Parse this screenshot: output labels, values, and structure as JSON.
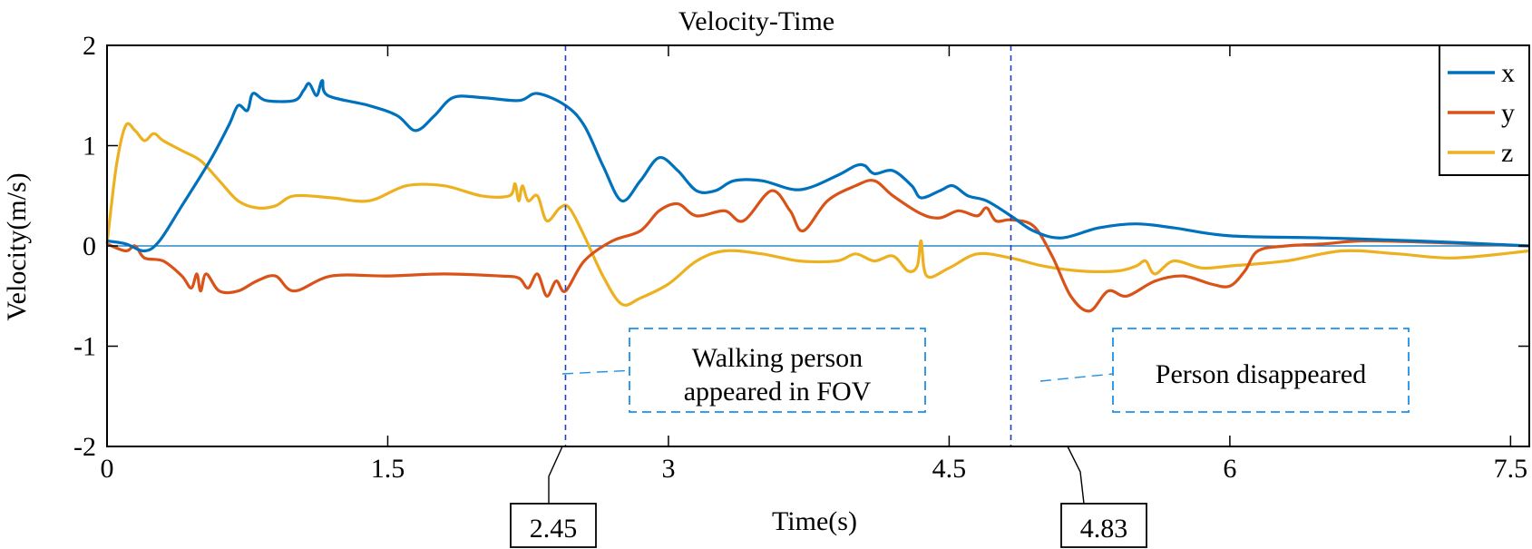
{
  "chart_data": {
    "type": "line",
    "title": "Velocity-Time",
    "xlabel": "Time(s)",
    "ylabel": "Velocity(m/s)",
    "xlim": [
      0,
      7.6
    ],
    "ylim": [
      -2,
      2
    ],
    "xticks": [
      0,
      1.5,
      3,
      4.5,
      6,
      7.5
    ],
    "xtick_labels": [
      "0",
      "1.5",
      "3",
      "4.5",
      "6",
      "7.5"
    ],
    "yticks": [
      -2,
      -1,
      0,
      1,
      2
    ],
    "ytick_labels": [
      "-2",
      "-1",
      "0",
      "1",
      "2"
    ],
    "grid": false,
    "legend_position": "top-right",
    "zero_line": true,
    "colors": {
      "x": "#0072BD",
      "y": "#D95319",
      "z": "#EDB120",
      "annotation": "#1E90E6",
      "marker": "#1F3FBF"
    },
    "series": [
      {
        "name": "x",
        "color": "#0072BD",
        "points": [
          [
            0,
            0.05
          ],
          [
            0.1,
            0.02
          ],
          [
            0.2,
            -0.05
          ],
          [
            0.28,
            0.05
          ],
          [
            0.4,
            0.4
          ],
          [
            0.55,
            0.85
          ],
          [
            0.65,
            1.2
          ],
          [
            0.7,
            1.4
          ],
          [
            0.75,
            1.35
          ],
          [
            0.78,
            1.52
          ],
          [
            0.85,
            1.45
          ],
          [
            1.0,
            1.45
          ],
          [
            1.05,
            1.55
          ],
          [
            1.08,
            1.62
          ],
          [
            1.12,
            1.5
          ],
          [
            1.15,
            1.65
          ],
          [
            1.18,
            1.5
          ],
          [
            1.4,
            1.4
          ],
          [
            1.55,
            1.3
          ],
          [
            1.65,
            1.15
          ],
          [
            1.75,
            1.3
          ],
          [
            1.85,
            1.48
          ],
          [
            2.0,
            1.48
          ],
          [
            2.2,
            1.45
          ],
          [
            2.3,
            1.52
          ],
          [
            2.45,
            1.4
          ],
          [
            2.55,
            1.2
          ],
          [
            2.65,
            0.8
          ],
          [
            2.75,
            0.45
          ],
          [
            2.85,
            0.65
          ],
          [
            2.95,
            0.88
          ],
          [
            3.05,
            0.75
          ],
          [
            3.15,
            0.55
          ],
          [
            3.25,
            0.55
          ],
          [
            3.35,
            0.65
          ],
          [
            3.5,
            0.65
          ],
          [
            3.7,
            0.56
          ],
          [
            3.9,
            0.7
          ],
          [
            4.0,
            0.8
          ],
          [
            4.05,
            0.8
          ],
          [
            4.1,
            0.72
          ],
          [
            4.2,
            0.75
          ],
          [
            4.3,
            0.6
          ],
          [
            4.35,
            0.48
          ],
          [
            4.45,
            0.55
          ],
          [
            4.52,
            0.6
          ],
          [
            4.6,
            0.5
          ],
          [
            4.7,
            0.45
          ],
          [
            4.83,
            0.3
          ],
          [
            4.95,
            0.15
          ],
          [
            5.1,
            0.08
          ],
          [
            5.3,
            0.18
          ],
          [
            5.5,
            0.22
          ],
          [
            5.7,
            0.18
          ],
          [
            6.0,
            0.1
          ],
          [
            6.5,
            0.08
          ],
          [
            7.0,
            0.05
          ],
          [
            7.6,
            0.0
          ]
        ]
      },
      {
        "name": "y",
        "color": "#D95319",
        "points": [
          [
            0,
            0.02
          ],
          [
            0.1,
            -0.05
          ],
          [
            0.15,
            0.0
          ],
          [
            0.2,
            -0.12
          ],
          [
            0.3,
            -0.15
          ],
          [
            0.4,
            -0.3
          ],
          [
            0.45,
            -0.42
          ],
          [
            0.48,
            -0.28
          ],
          [
            0.5,
            -0.45
          ],
          [
            0.53,
            -0.28
          ],
          [
            0.6,
            -0.45
          ],
          [
            0.7,
            -0.45
          ],
          [
            0.8,
            -0.35
          ],
          [
            0.9,
            -0.3
          ],
          [
            1.0,
            -0.45
          ],
          [
            1.2,
            -0.3
          ],
          [
            1.5,
            -0.3
          ],
          [
            1.8,
            -0.28
          ],
          [
            2.1,
            -0.3
          ],
          [
            2.2,
            -0.32
          ],
          [
            2.25,
            -0.42
          ],
          [
            2.3,
            -0.28
          ],
          [
            2.35,
            -0.5
          ],
          [
            2.4,
            -0.35
          ],
          [
            2.45,
            -0.45
          ],
          [
            2.55,
            -0.15
          ],
          [
            2.7,
            0.05
          ],
          [
            2.85,
            0.15
          ],
          [
            2.95,
            0.35
          ],
          [
            3.05,
            0.42
          ],
          [
            3.15,
            0.3
          ],
          [
            3.3,
            0.35
          ],
          [
            3.4,
            0.25
          ],
          [
            3.55,
            0.55
          ],
          [
            3.65,
            0.35
          ],
          [
            3.72,
            0.15
          ],
          [
            3.85,
            0.45
          ],
          [
            4.0,
            0.6
          ],
          [
            4.1,
            0.65
          ],
          [
            4.2,
            0.5
          ],
          [
            4.35,
            0.32
          ],
          [
            4.45,
            0.28
          ],
          [
            4.55,
            0.35
          ],
          [
            4.65,
            0.3
          ],
          [
            4.7,
            0.38
          ],
          [
            4.75,
            0.25
          ],
          [
            4.83,
            0.26
          ],
          [
            4.95,
            0.2
          ],
          [
            5.05,
            -0.1
          ],
          [
            5.15,
            -0.5
          ],
          [
            5.25,
            -0.65
          ],
          [
            5.35,
            -0.45
          ],
          [
            5.45,
            -0.5
          ],
          [
            5.6,
            -0.35
          ],
          [
            5.75,
            -0.3
          ],
          [
            5.9,
            -0.38
          ],
          [
            6.0,
            -0.4
          ],
          [
            6.08,
            -0.25
          ],
          [
            6.15,
            -0.05
          ],
          [
            6.3,
            0.0
          ],
          [
            6.5,
            0.02
          ],
          [
            6.7,
            0.05
          ],
          [
            7.0,
            0.04
          ],
          [
            7.3,
            0.02
          ],
          [
            7.6,
            0.0
          ]
        ]
      },
      {
        "name": "z",
        "color": "#EDB120",
        "points": [
          [
            0,
            0.02
          ],
          [
            0.05,
            0.8
          ],
          [
            0.1,
            1.2
          ],
          [
            0.15,
            1.15
          ],
          [
            0.2,
            1.05
          ],
          [
            0.25,
            1.12
          ],
          [
            0.3,
            1.05
          ],
          [
            0.4,
            0.95
          ],
          [
            0.5,
            0.85
          ],
          [
            0.6,
            0.65
          ],
          [
            0.7,
            0.45
          ],
          [
            0.8,
            0.38
          ],
          [
            0.9,
            0.4
          ],
          [
            1.0,
            0.5
          ],
          [
            1.2,
            0.48
          ],
          [
            1.4,
            0.45
          ],
          [
            1.6,
            0.6
          ],
          [
            1.8,
            0.6
          ],
          [
            2.0,
            0.5
          ],
          [
            2.15,
            0.5
          ],
          [
            2.18,
            0.62
          ],
          [
            2.2,
            0.45
          ],
          [
            2.22,
            0.6
          ],
          [
            2.25,
            0.45
          ],
          [
            2.3,
            0.5
          ],
          [
            2.35,
            0.25
          ],
          [
            2.42,
            0.38
          ],
          [
            2.47,
            0.38
          ],
          [
            2.55,
            0.1
          ],
          [
            2.65,
            -0.3
          ],
          [
            2.75,
            -0.58
          ],
          [
            2.85,
            -0.52
          ],
          [
            3.0,
            -0.38
          ],
          [
            3.15,
            -0.15
          ],
          [
            3.3,
            -0.05
          ],
          [
            3.5,
            -0.08
          ],
          [
            3.7,
            -0.15
          ],
          [
            3.9,
            -0.15
          ],
          [
            4.0,
            -0.08
          ],
          [
            4.1,
            -0.15
          ],
          [
            4.2,
            -0.1
          ],
          [
            4.28,
            -0.25
          ],
          [
            4.33,
            -0.2
          ],
          [
            4.35,
            0.05
          ],
          [
            4.38,
            -0.3
          ],
          [
            4.5,
            -0.22
          ],
          [
            4.65,
            -0.08
          ],
          [
            4.83,
            -0.12
          ],
          [
            5.0,
            -0.2
          ],
          [
            5.2,
            -0.25
          ],
          [
            5.4,
            -0.25
          ],
          [
            5.5,
            -0.2
          ],
          [
            5.55,
            -0.15
          ],
          [
            5.6,
            -0.28
          ],
          [
            5.7,
            -0.15
          ],
          [
            5.85,
            -0.22
          ],
          [
            6.0,
            -0.2
          ],
          [
            6.3,
            -0.15
          ],
          [
            6.6,
            -0.05
          ],
          [
            6.9,
            -0.08
          ],
          [
            7.2,
            -0.12
          ],
          [
            7.6,
            -0.05
          ]
        ]
      }
    ],
    "annotations": [
      {
        "x": 2.45,
        "label": "2.45",
        "text_lines": [
          "Walking person",
          "appeared in FOV"
        ]
      },
      {
        "x": 4.83,
        "label": "4.83",
        "text_lines": [
          "Person disappeared"
        ]
      }
    ]
  }
}
